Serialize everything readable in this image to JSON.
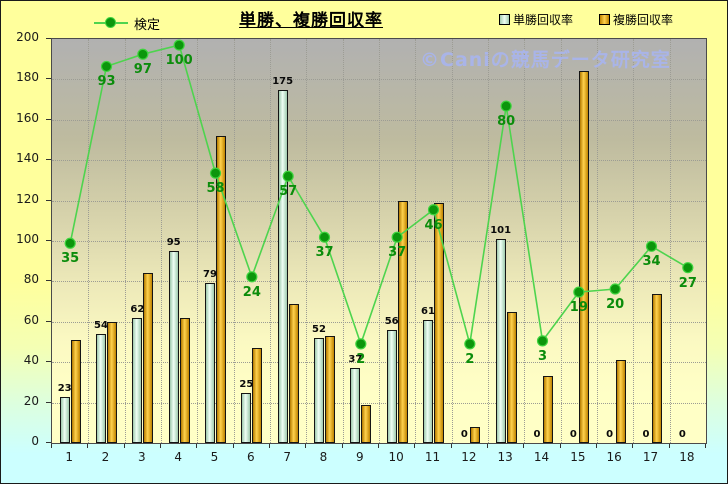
{
  "title": "単勝、複勝回収率",
  "watermark": "©Caniの競馬データ研究室",
  "legend": {
    "line": "検定",
    "win": "単勝回収率",
    "place": "複勝回収率"
  },
  "colors": {
    "background_top": "#ffff9c",
    "background_bottom": "#ccffff",
    "plot_top": "#b1b1b1",
    "plot_bottom": "#ffffc6",
    "line": "#4ed44e",
    "dot_fill": "#0c960c",
    "dot_stroke": "#3fd43f",
    "line_label": "#0b8c0b",
    "win_bar_center": "#effff5",
    "win_bar_edge": "#9fc9ad",
    "place_bar_center": "#ffd24d",
    "place_bar_edge": "#b47a00",
    "watermark": "#a9b4e8",
    "gridline": "#9c9c94"
  },
  "chart_data": {
    "type": "combo-bar-line",
    "title": "単勝、複勝回収率",
    "categories": [
      "1",
      "2",
      "3",
      "4",
      "5",
      "6",
      "7",
      "8",
      "9",
      "10",
      "11",
      "12",
      "13",
      "14",
      "15",
      "16",
      "17",
      "18"
    ],
    "series": [
      {
        "name": "単勝回収率",
        "type": "bar",
        "labeled": true,
        "values": [
          23,
          54,
          62,
          95,
          79,
          25,
          175,
          52,
          37,
          56,
          61,
          0,
          101,
          0,
          0,
          0,
          0,
          0
        ]
      },
      {
        "name": "複勝回収率",
        "type": "bar",
        "labeled": false,
        "values": [
          51,
          60,
          84,
          62,
          152,
          47,
          69,
          53,
          19,
          120,
          119,
          8,
          65,
          33,
          184,
          41,
          74,
          0
        ]
      },
      {
        "name": "検定",
        "type": "line",
        "labeled": true,
        "axis": "secondary",
        "values": [
          35,
          93,
          97,
          100,
          58,
          24,
          57,
          37,
          2,
          37,
          46,
          2,
          80,
          3,
          19,
          20,
          34,
          27
        ]
      }
    ],
    "ylim": [
      0,
      200
    ],
    "ytick_step": 20,
    "secondary_ylim": [
      -30.5,
      102
    ],
    "grid": true,
    "legend_position": "top",
    "xlabel": "",
    "ylabel": ""
  }
}
